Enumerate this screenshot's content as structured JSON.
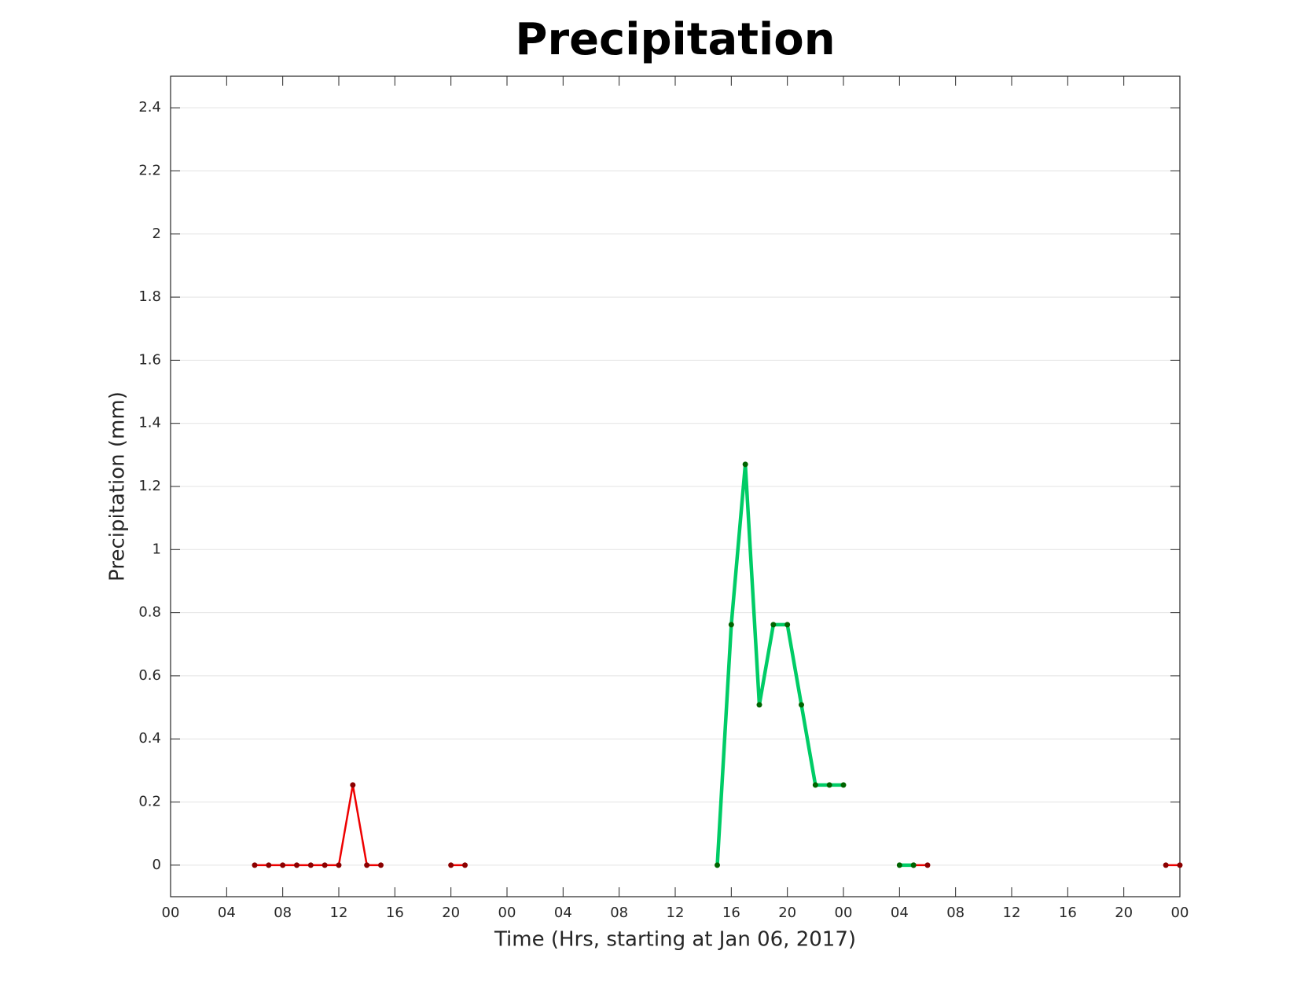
{
  "chart_data": {
    "type": "line",
    "title": "Precipitation",
    "xlabel": "Time (Hrs, starting at Jan 06, 2017)",
    "ylabel": "Precipitation (mm)",
    "xlim": [
      0,
      72
    ],
    "xticks": [
      {
        "value": 0,
        "label": "00"
      },
      {
        "value": 4,
        "label": "04"
      },
      {
        "value": 8,
        "label": "08"
      },
      {
        "value": 12,
        "label": "12"
      },
      {
        "value": 16,
        "label": "16"
      },
      {
        "value": 20,
        "label": "20"
      },
      {
        "value": 24,
        "label": "00"
      },
      {
        "value": 28,
        "label": "04"
      },
      {
        "value": 32,
        "label": "08"
      },
      {
        "value": 36,
        "label": "12"
      },
      {
        "value": 40,
        "label": "16"
      },
      {
        "value": 44,
        "label": "20"
      },
      {
        "value": 48,
        "label": "00"
      },
      {
        "value": 52,
        "label": "04"
      },
      {
        "value": 56,
        "label": "08"
      },
      {
        "value": 60,
        "label": "12"
      },
      {
        "value": 64,
        "label": "16"
      },
      {
        "value": 68,
        "label": "20"
      },
      {
        "value": 72,
        "label": "00"
      }
    ],
    "ylim": [
      -0.1,
      2.5
    ],
    "yticks": [
      0,
      0.2,
      0.4,
      0.6,
      0.8,
      1,
      1.2,
      1.4,
      1.6,
      1.8,
      2,
      2.2,
      2.4
    ],
    "grid": true,
    "series": [
      {
        "color": "#ee0000",
        "marker_color": "#8b0000",
        "line_width": 2.5,
        "x": [
          6,
          7,
          8,
          9,
          10,
          11,
          12,
          13,
          14,
          15,
          16,
          20,
          21,
          22,
          53,
          54,
          55,
          71,
          72
        ],
        "values": [
          0,
          0,
          0,
          0,
          0,
          0,
          0,
          0.254,
          0,
          0,
          null,
          0,
          0,
          null,
          0,
          0,
          null,
          0,
          0
        ]
      },
      {
        "color": "#00cc66",
        "marker_color": "#006400",
        "line_width": 4.5,
        "x": [
          39,
          40,
          41,
          42,
          43,
          44,
          45,
          46,
          47,
          48,
          49,
          52,
          53
        ],
        "values": [
          0,
          0.762,
          1.27,
          0.508,
          0.762,
          0.762,
          0.508,
          0.254,
          0.254,
          0.254,
          null,
          0,
          0
        ]
      }
    ]
  }
}
